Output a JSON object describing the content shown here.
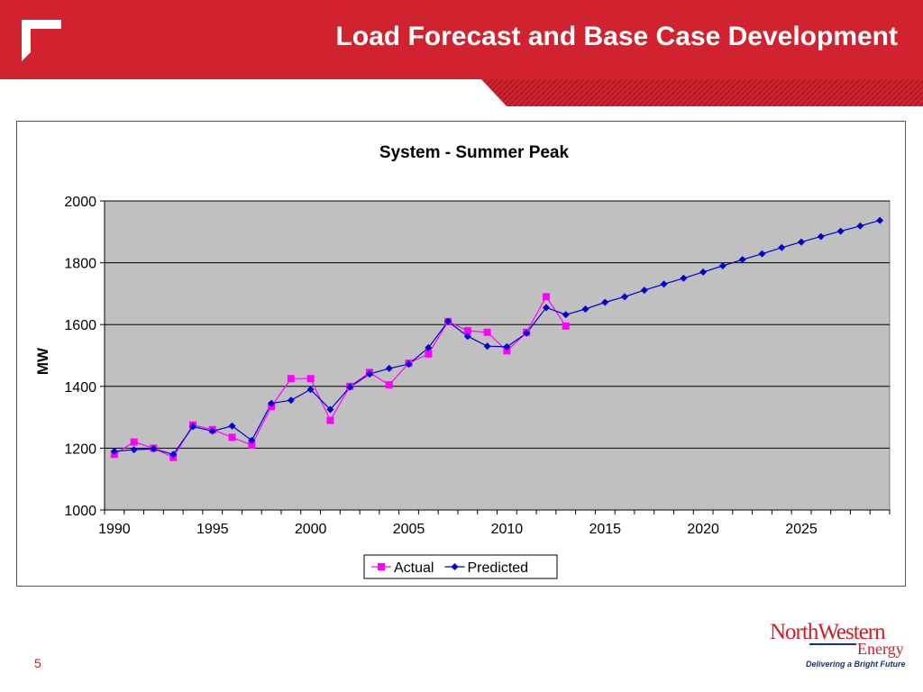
{
  "slide": {
    "title": "Load Forecast and Base Case Development",
    "page_number": "5"
  },
  "brand": {
    "name": "NorthWestern",
    "sub": "Energy",
    "tagline": "Delivering a Bright Future"
  },
  "colors": {
    "header_red": "#d0232f",
    "actual": "#ff00ff",
    "predicted": "#0000cc",
    "plot_bg": "#c0c0c0"
  },
  "chart_data": {
    "type": "line",
    "title": "System - Summer Peak",
    "xlabel": "",
    "ylabel": "MW",
    "xlim": [
      1989.5,
      2029.5
    ],
    "ylim": [
      1000,
      2000
    ],
    "xticks": [
      1990,
      1995,
      2000,
      2005,
      2010,
      2015,
      2020,
      2025
    ],
    "yticks": [
      1000,
      1200,
      1400,
      1600,
      1800,
      2000
    ],
    "grid": "horizontal",
    "legend": "bottom-center",
    "series": [
      {
        "name": "Actual",
        "color": "#ff00ff",
        "marker": "square",
        "x": [
          1990,
          1991,
          1992,
          1993,
          1994,
          1995,
          1996,
          1997,
          1998,
          1999,
          2000,
          2001,
          2002,
          2003,
          2004,
          2005,
          2006,
          2007,
          2008,
          2009,
          2010,
          2011,
          2012,
          2013
        ],
        "values": [
          1180,
          1220,
          1200,
          1170,
          1275,
          1260,
          1235,
          1210,
          1335,
          1425,
          1425,
          1290,
          1400,
          1445,
          1405,
          1475,
          1505,
          1610,
          1580,
          1575,
          1515,
          1575,
          1690,
          1595
        ]
      },
      {
        "name": "Predicted",
        "color": "#0000cc",
        "marker": "diamond",
        "x": [
          1990,
          1991,
          1992,
          1993,
          1994,
          1995,
          1996,
          1997,
          1998,
          1999,
          2000,
          2001,
          2002,
          2003,
          2004,
          2005,
          2006,
          2007,
          2008,
          2009,
          2010,
          2011,
          2012,
          2013,
          2014,
          2015,
          2016,
          2017,
          2018,
          2019,
          2020,
          2021,
          2022,
          2023,
          2024,
          2025,
          2026,
          2027,
          2028,
          2029
        ],
        "values": [
          1190,
          1195,
          1198,
          1180,
          1270,
          1255,
          1272,
          1225,
          1345,
          1355,
          1390,
          1325,
          1398,
          1440,
          1458,
          1472,
          1525,
          1610,
          1562,
          1530,
          1528,
          1572,
          1655,
          1632,
          1650,
          1672,
          1690,
          1711,
          1731,
          1750,
          1770,
          1790,
          1810,
          1829,
          1849,
          1867,
          1885,
          1902,
          1919,
          1937
        ]
      }
    ]
  }
}
